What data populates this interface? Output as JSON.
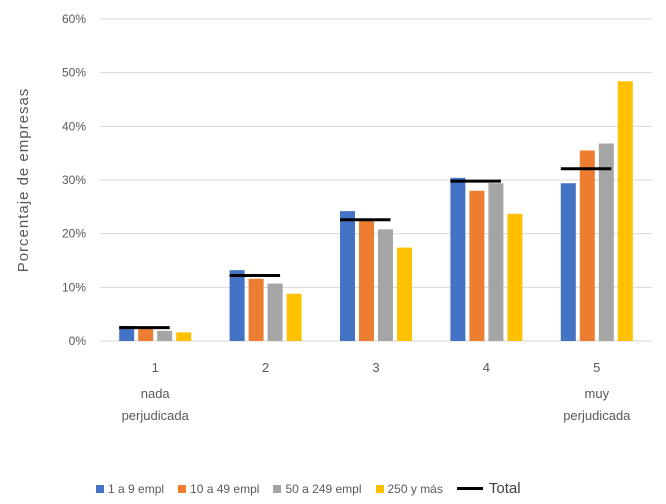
{
  "chart_data": {
    "type": "bar",
    "ylabel": "Porcentaje de empresas",
    "ylim": [
      0,
      60
    ],
    "yticks": [
      "0%",
      "10%",
      "20%",
      "30%",
      "40%",
      "50%",
      "60%"
    ],
    "categories": [
      {
        "num": "1",
        "sub": [
          "nada",
          "perjudicada"
        ]
      },
      {
        "num": "2",
        "sub": []
      },
      {
        "num": "3",
        "sub": []
      },
      {
        "num": "4",
        "sub": []
      },
      {
        "num": "5",
        "sub": [
          "muy",
          "perjudicada"
        ]
      }
    ],
    "series": [
      {
        "name": "1 a 9 empl",
        "color": "#4472C4",
        "values": [
          2.8,
          13.2,
          24.2,
          30.4,
          29.4
        ]
      },
      {
        "name": "10 a 49 empl",
        "color": "#ED7D31",
        "values": [
          2.5,
          11.6,
          22.5,
          28.0,
          35.5
        ]
      },
      {
        "name": "50 a 249 empl",
        "color": "#A5A5A5",
        "values": [
          1.9,
          10.7,
          20.8,
          29.4,
          36.8
        ]
      },
      {
        "name": "250 y más",
        "color": "#FFC000",
        "values": [
          1.6,
          8.8,
          17.4,
          23.7,
          48.4
        ]
      }
    ],
    "total": {
      "name": "Total",
      "color": "#000000",
      "values": [
        2.5,
        12.2,
        22.6,
        29.8,
        32.1
      ]
    },
    "grid": true,
    "legend_position": "bottom"
  }
}
